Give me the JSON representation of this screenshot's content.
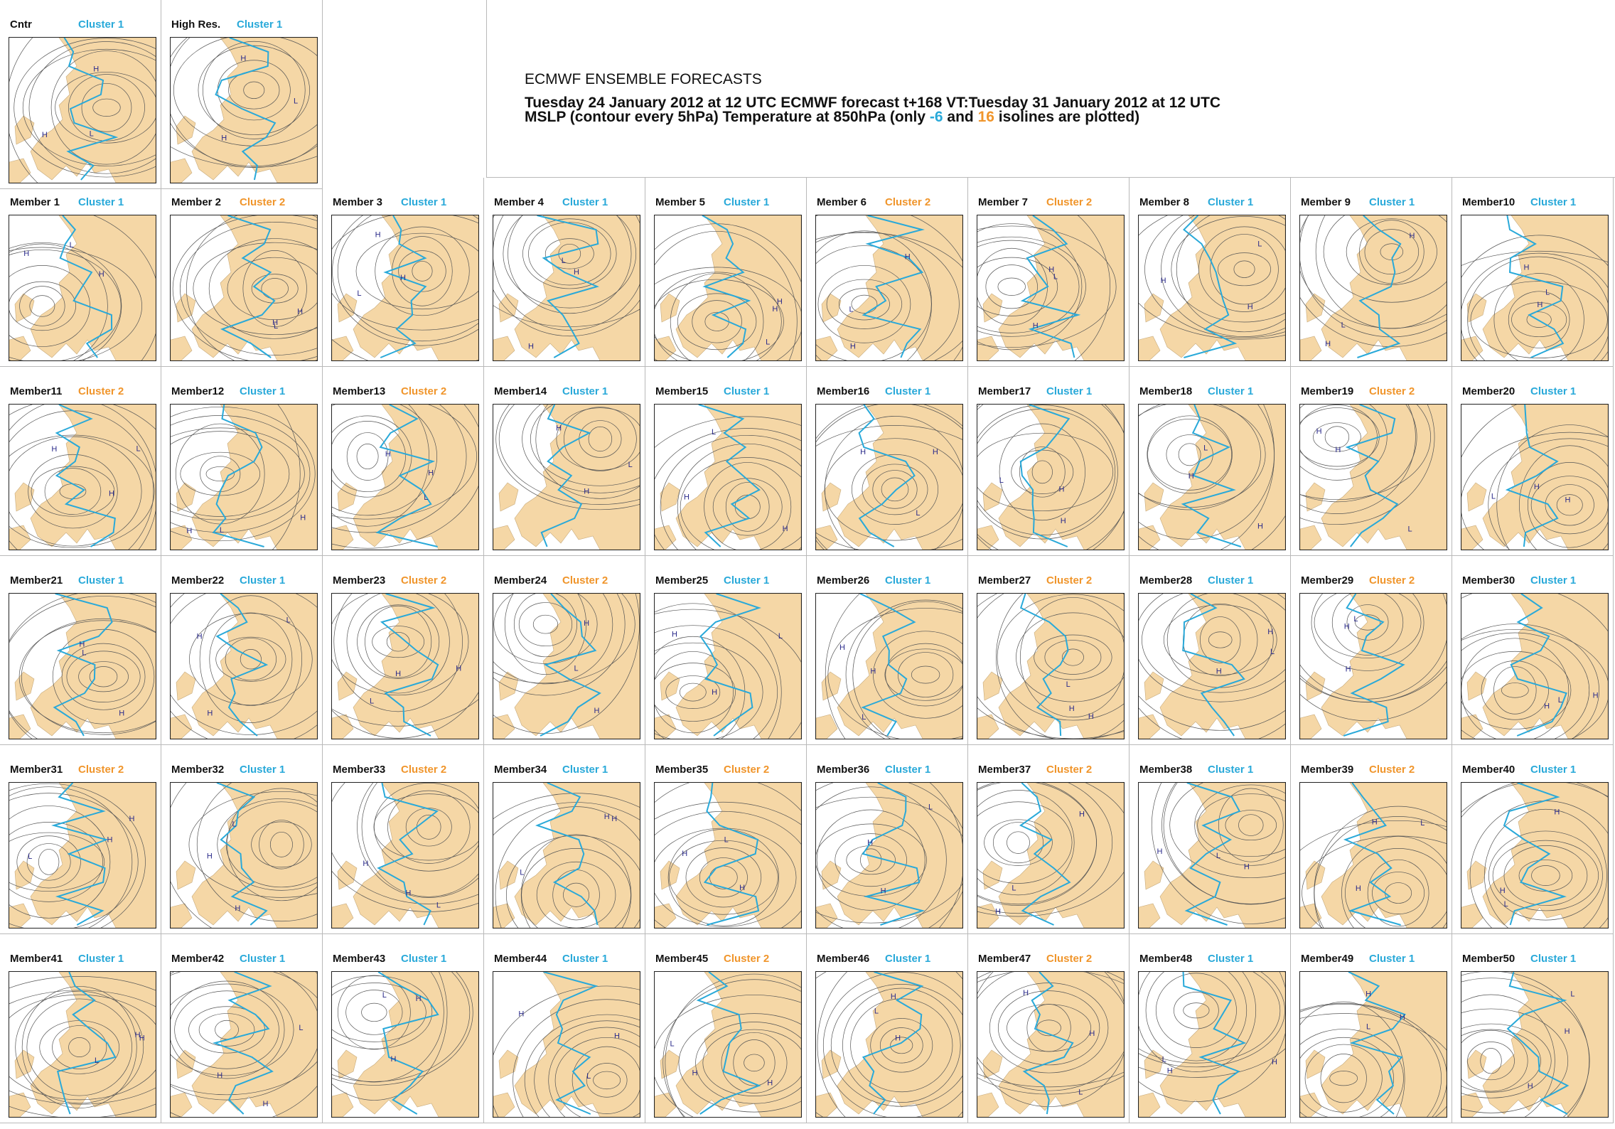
{
  "header": {
    "title": "ECMWF ENSEMBLE FORECASTS",
    "line1": "Tuesday 24 January 2012 at 12 UTC ECMWF forecast t+168 VT:Tuesday 31 January 2012 at 12 UTC",
    "line2_prefix": "MSLP (contour every 5hPa) Temperature at 850hPa (only ",
    "line2_cold": "-6",
    "line2_and": " and ",
    "line2_warm": "16",
    "line2_suffix": " isolines are plotted)"
  },
  "colors": {
    "cluster_1": "#29a9d9",
    "cluster_2": "#f0952b",
    "land": "#f5d7a6",
    "isobar": "#555555",
    "isotherm_cold": "#29a9d9",
    "isotherm_warm": "#f0952b"
  },
  "top_panels": [
    {
      "label": "Cntr",
      "cluster": "Cluster 1",
      "group": 1
    },
    {
      "label": "High Res.",
      "cluster": "Cluster 1",
      "group": 1
    }
  ],
  "members": [
    {
      "label": "Member 1",
      "cluster": "Cluster 1",
      "group": 1
    },
    {
      "label": "Member 2",
      "cluster": "Cluster 2",
      "group": 2
    },
    {
      "label": "Member 3",
      "cluster": "Cluster 1",
      "group": 1
    },
    {
      "label": "Member 4",
      "cluster": "Cluster 1",
      "group": 1
    },
    {
      "label": "Member 5",
      "cluster": "Cluster 1",
      "group": 1
    },
    {
      "label": "Member 6",
      "cluster": "Cluster 2",
      "group": 2
    },
    {
      "label": "Member 7",
      "cluster": "Cluster 2",
      "group": 2
    },
    {
      "label": "Member 8",
      "cluster": "Cluster 1",
      "group": 1
    },
    {
      "label": "Member 9",
      "cluster": "Cluster 1",
      "group": 1
    },
    {
      "label": "Member10",
      "cluster": "Cluster 1",
      "group": 1
    },
    {
      "label": "Member11",
      "cluster": "Cluster 2",
      "group": 2
    },
    {
      "label": "Member12",
      "cluster": "Cluster 1",
      "group": 1
    },
    {
      "label": "Member13",
      "cluster": "Cluster 2",
      "group": 2
    },
    {
      "label": "Member14",
      "cluster": "Cluster 1",
      "group": 1
    },
    {
      "label": "Member15",
      "cluster": "Cluster 1",
      "group": 1
    },
    {
      "label": "Member16",
      "cluster": "Cluster 1",
      "group": 1
    },
    {
      "label": "Member17",
      "cluster": "Cluster 1",
      "group": 1
    },
    {
      "label": "Member18",
      "cluster": "Cluster 1",
      "group": 1
    },
    {
      "label": "Member19",
      "cluster": "Cluster 2",
      "group": 2
    },
    {
      "label": "Member20",
      "cluster": "Cluster 1",
      "group": 1
    },
    {
      "label": "Member21",
      "cluster": "Cluster 1",
      "group": 1
    },
    {
      "label": "Member22",
      "cluster": "Cluster 1",
      "group": 1
    },
    {
      "label": "Member23",
      "cluster": "Cluster 2",
      "group": 2
    },
    {
      "label": "Member24",
      "cluster": "Cluster 2",
      "group": 2
    },
    {
      "label": "Member25",
      "cluster": "Cluster 1",
      "group": 1
    },
    {
      "label": "Member26",
      "cluster": "Cluster 1",
      "group": 1
    },
    {
      "label": "Member27",
      "cluster": "Cluster 2",
      "group": 2
    },
    {
      "label": "Member28",
      "cluster": "Cluster 1",
      "group": 1
    },
    {
      "label": "Member29",
      "cluster": "Cluster 2",
      "group": 2
    },
    {
      "label": "Member30",
      "cluster": "Cluster 1",
      "group": 1
    },
    {
      "label": "Member31",
      "cluster": "Cluster 2",
      "group": 2
    },
    {
      "label": "Member32",
      "cluster": "Cluster 1",
      "group": 1
    },
    {
      "label": "Member33",
      "cluster": "Cluster 2",
      "group": 2
    },
    {
      "label": "Member34",
      "cluster": "Cluster 1",
      "group": 1
    },
    {
      "label": "Member35",
      "cluster": "Cluster 2",
      "group": 2
    },
    {
      "label": "Member36",
      "cluster": "Cluster 1",
      "group": 1
    },
    {
      "label": "Member37",
      "cluster": "Cluster 2",
      "group": 2
    },
    {
      "label": "Member38",
      "cluster": "Cluster 1",
      "group": 1
    },
    {
      "label": "Member39",
      "cluster": "Cluster 2",
      "group": 2
    },
    {
      "label": "Member40",
      "cluster": "Cluster 1",
      "group": 1
    },
    {
      "label": "Member41",
      "cluster": "Cluster 1",
      "group": 1
    },
    {
      "label": "Member42",
      "cluster": "Cluster 1",
      "group": 1
    },
    {
      "label": "Member43",
      "cluster": "Cluster 1",
      "group": 1
    },
    {
      "label": "Member44",
      "cluster": "Cluster 1",
      "group": 1
    },
    {
      "label": "Member45",
      "cluster": "Cluster 2",
      "group": 2
    },
    {
      "label": "Member46",
      "cluster": "Cluster 1",
      "group": 1
    },
    {
      "label": "Member47",
      "cluster": "Cluster 2",
      "group": 2
    },
    {
      "label": "Member48",
      "cluster": "Cluster 1",
      "group": 1
    },
    {
      "label": "Member49",
      "cluster": "Cluster 1",
      "group": 1
    },
    {
      "label": "Member50",
      "cluster": "Cluster 1",
      "group": 1
    }
  ]
}
